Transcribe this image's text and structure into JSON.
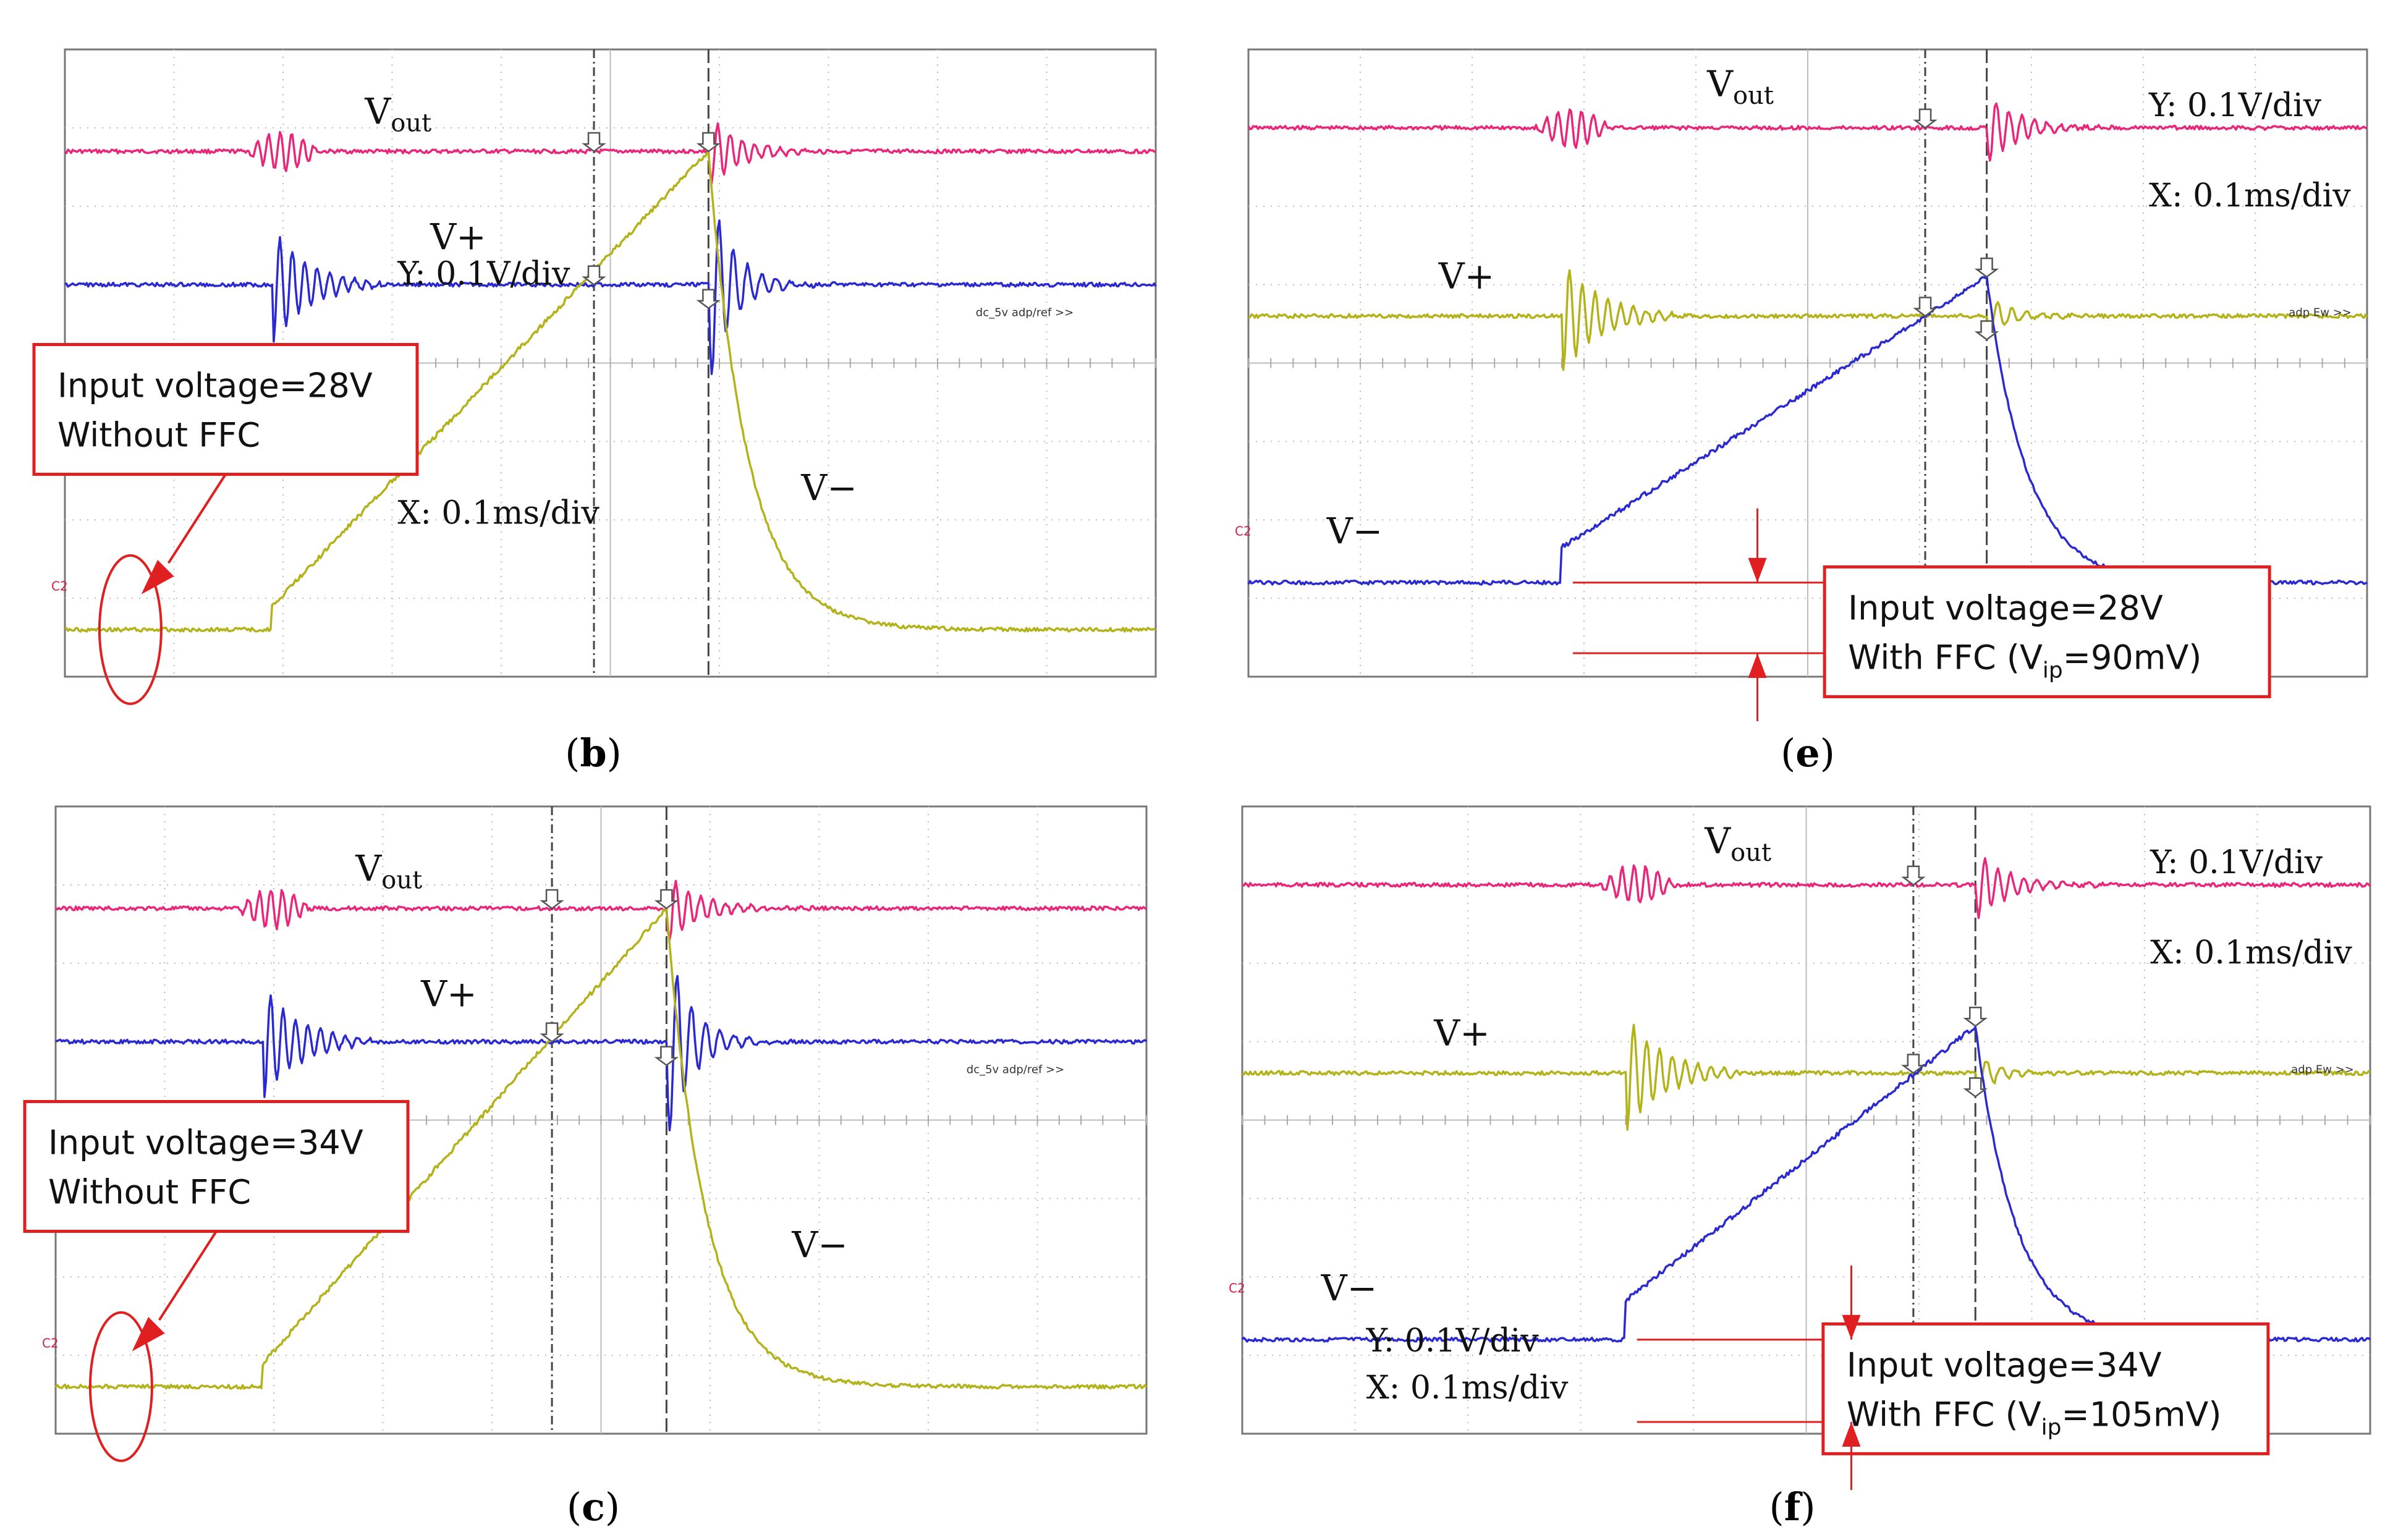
{
  "figure": {
    "panels": [
      {
        "id": "b",
        "caption": "b",
        "labels": {
          "vout_main": "V",
          "vout_sub": "out",
          "vplus": "V+",
          "vminus": "V−",
          "scale_y": "Y: 0.1V/div",
          "scale_x": "X: 0.1ms/div",
          "right_tag": "dc_5v adp/ref >>",
          "ch_tag": "C2"
        },
        "annotation": {
          "line1": "Input voltage=28V",
          "line2": "Without FFC",
          "sub": "",
          "line2_rest": ""
        },
        "colors": {
          "vout": "#e8267a",
          "vplus": "#2a2ad0",
          "vminus": "#b3b21a"
        }
      },
      {
        "id": "e",
        "caption": "e",
        "labels": {
          "vout_main": "V",
          "vout_sub": "out",
          "vplus": "V+",
          "vminus": "V−",
          "scale_y": "Y: 0.1V/div",
          "scale_x": "X: 0.1ms/div",
          "right_tag": "adp Ew >>",
          "ch_tag": "C2"
        },
        "annotation": {
          "line1": "Input voltage=28V",
          "line2": "With FFC (V",
          "sub": "ip",
          "line2_rest": "=90mV)"
        },
        "colors": {
          "vout": "#e8267a",
          "vplus": "#b3b21a",
          "vminus": "#2a2ad0"
        }
      },
      {
        "id": "c",
        "caption": "c",
        "labels": {
          "vout_main": "V",
          "vout_sub": "out",
          "vplus": "V+",
          "vminus": "V−",
          "scale_y": "",
          "scale_x": "",
          "right_tag": "dc_5v adp/ref >>",
          "ch_tag": "C2"
        },
        "annotation": {
          "line1": "Input voltage=34V",
          "line2": "Without FFC",
          "sub": "",
          "line2_rest": ""
        },
        "colors": {
          "vout": "#e8267a",
          "vplus": "#2a2ad0",
          "vminus": "#b3b21a"
        }
      },
      {
        "id": "f",
        "caption": "f",
        "labels": {
          "vout_main": "V",
          "vout_sub": "out",
          "vplus": "V+",
          "vminus": "V−",
          "scale_y": "Y: 0.1V/div",
          "scale_x": "X: 0.1ms/div",
          "scale_y2": "Y: 0.1V/div",
          "scale_x2": "X: 0.1ms/div",
          "right_tag": "adp Ew >>",
          "ch_tag": "C2"
        },
        "annotation": {
          "line1": "Input voltage=34V",
          "line2": "With FFC (V",
          "sub": "ip",
          "line2_rest": "=105mV)"
        },
        "colors": {
          "vout": "#e8267a",
          "vplus": "#b3b21a",
          "vminus": "#2a2ad0"
        }
      }
    ]
  },
  "chart_data": [
    {
      "type": "line",
      "panel": "b",
      "title": "Input voltage=28V, Without FFC",
      "x_unit": "ms",
      "x_per_div": 0.1,
      "y_unit": "V",
      "y_per_div": 0.1,
      "x_range_div": [
        0,
        10
      ],
      "series": [
        {
          "name": "Vout",
          "baseline_div": 1.3,
          "event": "ringing at 1.9 div and 5.9 div"
        },
        {
          "name": "V+",
          "baseline_div": 3.0,
          "event": "ringing at 1.9 div and 5.7 div"
        },
        {
          "name": "V−",
          "baseline_div": 7.4,
          "ramp_start_div": 1.9,
          "ramp_end_div": 5.9,
          "peak_div": 1.3,
          "decay": "exponential back to baseline by 7.5 div"
        }
      ]
    },
    {
      "type": "line",
      "panel": "e",
      "title": "Input voltage=28V, With FFC (Vip=90mV)",
      "x_unit": "ms",
      "x_per_div": 0.1,
      "y_unit": "V",
      "y_per_div": 0.1,
      "x_range_div": [
        0,
        10
      ],
      "series": [
        {
          "name": "Vout",
          "baseline_div": 1.0
        },
        {
          "name": "V+",
          "baseline_div": 3.4
        },
        {
          "name": "V−",
          "baseline_div": 6.8,
          "step_div": 0.45,
          "ramp_start_div": 2.8,
          "ramp_end_div": 6.6,
          "peak_div": 2.9
        }
      ],
      "vip_mV": 90
    },
    {
      "type": "line",
      "panel": "c",
      "title": "Input voltage=34V, Without FFC",
      "x_unit": "ms",
      "x_per_div": 0.1,
      "y_unit": "V",
      "y_per_div": 0.1,
      "x_range_div": [
        0,
        10
      ],
      "series": [
        {
          "name": "Vout",
          "baseline_div": 1.3
        },
        {
          "name": "V+",
          "baseline_div": 3.0
        },
        {
          "name": "V−",
          "baseline_div": 7.4,
          "ramp_start_div": 1.9,
          "ramp_end_div": 5.6,
          "peak_div": 1.3
        }
      ]
    },
    {
      "type": "line",
      "panel": "f",
      "title": "Input voltage=34V, With FFC (Vip=105mV)",
      "x_unit": "ms",
      "x_per_div": 0.1,
      "y_unit": "V",
      "y_per_div": 0.1,
      "x_range_div": [
        0,
        10
      ],
      "series": [
        {
          "name": "Vout",
          "baseline_div": 1.0
        },
        {
          "name": "V+",
          "baseline_div": 3.4
        },
        {
          "name": "V−",
          "baseline_div": 6.8,
          "step_div": 0.5,
          "ramp_start_div": 3.4,
          "ramp_end_div": 6.5,
          "peak_div": 2.8
        }
      ],
      "vip_mV": 105
    }
  ]
}
